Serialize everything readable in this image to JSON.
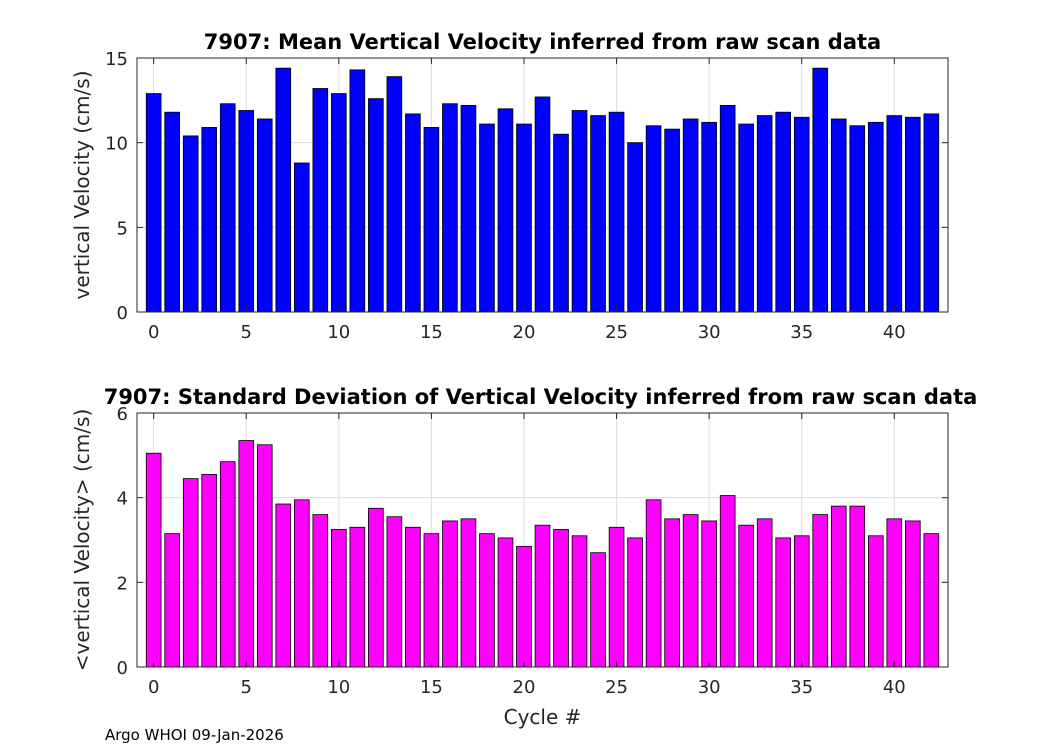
{
  "chart_data": [
    {
      "type": "bar",
      "title": "7907: Mean Vertical Velocity inferred from raw scan data",
      "xlabel": "",
      "ylabel": "vertical Velocity (cm/s)",
      "xlim": [
        -0.9,
        42.9
      ],
      "ylim": [
        0,
        15
      ],
      "xticks": [
        0,
        5,
        10,
        15,
        20,
        25,
        30,
        35,
        40
      ],
      "yticks": [
        0,
        5,
        10,
        15
      ],
      "grid": true,
      "color": "#0000ff",
      "x": [
        0,
        1,
        2,
        3,
        4,
        5,
        6,
        7,
        8,
        9,
        10,
        11,
        12,
        13,
        14,
        15,
        16,
        17,
        18,
        19,
        20,
        21,
        22,
        23,
        24,
        25,
        26,
        27,
        28,
        29,
        30,
        31,
        32,
        33,
        34,
        35,
        36,
        37,
        38,
        39,
        40,
        41,
        42
      ],
      "values": [
        12.9,
        11.8,
        10.4,
        10.9,
        12.3,
        11.9,
        11.4,
        14.4,
        8.8,
        13.2,
        12.9,
        14.3,
        12.6,
        13.9,
        11.7,
        10.9,
        12.3,
        12.2,
        11.1,
        12.0,
        11.1,
        12.7,
        10.5,
        11.9,
        11.6,
        11.8,
        10.0,
        11.0,
        10.8,
        11.4,
        11.2,
        12.2,
        11.1,
        11.6,
        11.8,
        11.5,
        14.4,
        11.4,
        11.0,
        11.2,
        11.6,
        11.5,
        11.7
      ]
    },
    {
      "type": "bar",
      "title": "7907: Standard Deviation of Vertical Velocity inferred from raw scan data",
      "xlabel": "Cycle #",
      "ylabel": "<vertical Velocity> (cm/s)",
      "xlim": [
        -0.9,
        42.9
      ],
      "ylim": [
        0,
        6
      ],
      "xticks": [
        0,
        5,
        10,
        15,
        20,
        25,
        30,
        35,
        40
      ],
      "yticks": [
        0,
        2,
        4,
        6
      ],
      "grid": true,
      "color": "#ff00ff",
      "x": [
        0,
        1,
        2,
        3,
        4,
        5,
        6,
        7,
        8,
        9,
        10,
        11,
        12,
        13,
        14,
        15,
        16,
        17,
        18,
        19,
        20,
        21,
        22,
        23,
        24,
        25,
        26,
        27,
        28,
        29,
        30,
        31,
        32,
        33,
        34,
        35,
        36,
        37,
        38,
        39,
        40,
        41,
        42
      ],
      "values": [
        5.05,
        3.15,
        4.45,
        4.55,
        4.85,
        5.35,
        5.25,
        3.85,
        3.95,
        3.6,
        3.25,
        3.3,
        3.75,
        3.55,
        3.3,
        3.15,
        3.45,
        3.5,
        3.15,
        3.05,
        2.85,
        3.35,
        3.25,
        3.1,
        2.7,
        3.3,
        3.05,
        3.95,
        3.5,
        3.6,
        3.45,
        4.05,
        3.35,
        3.5,
        3.05,
        3.1,
        3.6,
        3.8,
        3.8,
        3.1,
        3.5,
        3.45,
        3.15
      ]
    }
  ],
  "footer": "Argo WHOI 09-Jan-2026"
}
